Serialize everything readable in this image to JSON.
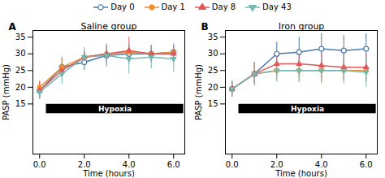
{
  "chart_data": [
    {
      "type": "line",
      "title": "Saline group",
      "panel_label": "A",
      "xlabel": "Time (hours)",
      "ylabel": "PASP (mmHg)",
      "x": [
        0,
        1,
        2,
        3,
        4,
        5,
        6
      ],
      "series": [
        {
          "name": "Day 0",
          "marker": "circle-open",
          "values": [
            19.0,
            26.0,
            27.5,
            29.5,
            30.0,
            30.0,
            30.5
          ],
          "err": [
            2.5,
            3.0,
            2.5,
            3.0,
            2.5,
            2.5,
            2.5
          ]
        },
        {
          "name": "Day 1",
          "marker": "circle",
          "values": [
            20.0,
            26.0,
            29.0,
            30.0,
            30.5,
            30.0,
            30.5
          ],
          "err": [
            2.0,
            2.5,
            2.0,
            2.0,
            2.5,
            2.5,
            1.5
          ]
        },
        {
          "name": "Day 8",
          "marker": "triangle-up",
          "values": [
            19.0,
            25.0,
            29.0,
            30.0,
            31.0,
            30.0,
            30.0
          ],
          "err": [
            2.5,
            2.0,
            2.0,
            2.5,
            4.0,
            2.5,
            2.5
          ]
        },
        {
          "name": "Day 43",
          "marker": "triangle-down",
          "values": [
            18.5,
            24.0,
            29.0,
            29.5,
            28.5,
            29.0,
            28.5
          ],
          "err": [
            2.0,
            3.0,
            3.0,
            3.5,
            4.5,
            3.5,
            4.0
          ]
        }
      ],
      "annotations": [
        {
          "text": "Hypoxia",
          "x": [
            0.3,
            6.45
          ],
          "y": 13.5,
          "height": 2.8
        }
      ],
      "xlim": [
        -0.3,
        6.5
      ],
      "xticks": [
        0,
        2,
        4,
        6
      ],
      "ylim": [
        0,
        37
      ],
      "yticks": [
        15,
        20,
        25,
        30,
        35
      ],
      "grid": false,
      "legend": "top"
    },
    {
      "type": "line",
      "title": "Iron group",
      "panel_label": "B",
      "xlabel": "Time (hours)",
      "ylabel": "PASP (mmHg)",
      "x": [
        0,
        1,
        2,
        3,
        4,
        5,
        6
      ],
      "series": [
        {
          "name": "Day 0",
          "marker": "circle-open",
          "values": [
            19.5,
            24.0,
            30.0,
            30.5,
            31.5,
            31.0,
            31.5
          ],
          "err": [
            2.5,
            3.5,
            3.5,
            4.5,
            4.5,
            4.5,
            4.5
          ]
        },
        {
          "name": "Day 1",
          "marker": "circle",
          "values": [
            19.5,
            24.0,
            25.0,
            25.0,
            25.0,
            25.0,
            25.0
          ],
          "err": [
            2.0,
            2.5,
            3.0,
            3.5,
            3.5,
            3.0,
            3.5
          ]
        },
        {
          "name": "Day 8",
          "marker": "triangle-up",
          "values": [
            19.5,
            24.0,
            27.0,
            27.0,
            26.5,
            26.0,
            26.0
          ],
          "err": [
            2.0,
            3.0,
            3.5,
            4.0,
            4.0,
            4.0,
            4.0
          ]
        },
        {
          "name": "Day 43",
          "marker": "triangle-down",
          "values": [
            19.5,
            24.0,
            25.0,
            25.0,
            25.0,
            25.0,
            24.5
          ],
          "err": [
            2.0,
            3.0,
            3.5,
            3.5,
            4.0,
            4.0,
            4.5
          ]
        }
      ],
      "annotations": [
        {
          "text": "Hypoxia",
          "x": [
            0.3,
            6.45
          ],
          "y": 13.5,
          "height": 2.8
        }
      ],
      "xlim": [
        -0.3,
        6.5
      ],
      "xticks": [
        0,
        2,
        4,
        6
      ],
      "ylim": [
        0,
        37
      ],
      "yticks": [
        15,
        20,
        25,
        30,
        35
      ],
      "grid": false,
      "legend": false
    }
  ]
}
